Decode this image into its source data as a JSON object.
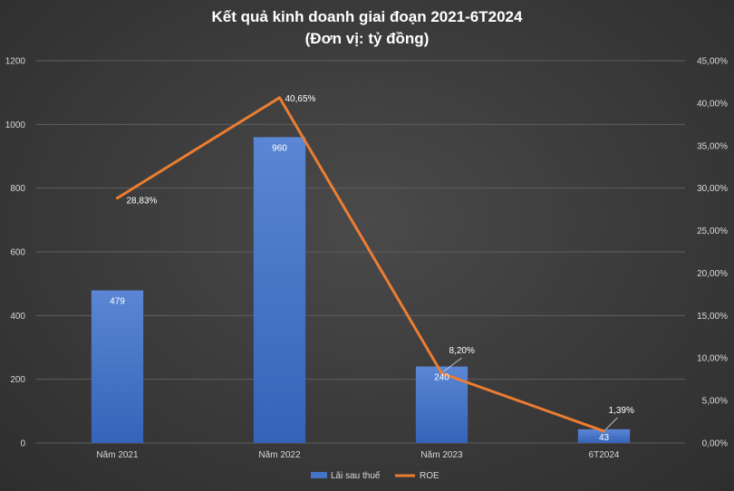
{
  "chart_data": {
    "type": "bar",
    "title": "Kết quả kinh doanh giai đoạn 2021-6T2024",
    "subtitle": "(Đơn vị: tỷ đồng)",
    "categories": [
      "Năm  2021",
      "Năm 2022",
      "Năm 2023",
      "6T2024"
    ],
    "series": [
      {
        "name": "Lãi sau thuế",
        "type": "bar",
        "axis": "left",
        "values": [
          479,
          960,
          240,
          43
        ],
        "labels": [
          "479",
          "960",
          "240",
          "43"
        ],
        "color": "#4472c4"
      },
      {
        "name": "ROE",
        "type": "line",
        "axis": "right",
        "values": [
          28.83,
          40.65,
          8.2,
          1.39
        ],
        "labels": [
          "28,83%",
          "40,65%",
          "8,20%",
          "1,39%"
        ],
        "color": "#ed7d31"
      }
    ],
    "y_left": {
      "ylim": [
        0,
        1200
      ],
      "ticks": [
        "0",
        "200",
        "400",
        "600",
        "800",
        "1000",
        "1200"
      ]
    },
    "y_right": {
      "ylim": [
        0,
        45
      ],
      "ticks": [
        "0,00%",
        "5,00%",
        "10,00%",
        "15,00%",
        "20,00%",
        "25,00%",
        "30,00%",
        "35,00%",
        "40,00%",
        "45,00%"
      ]
    },
    "grid": true,
    "legend": "bottom"
  }
}
